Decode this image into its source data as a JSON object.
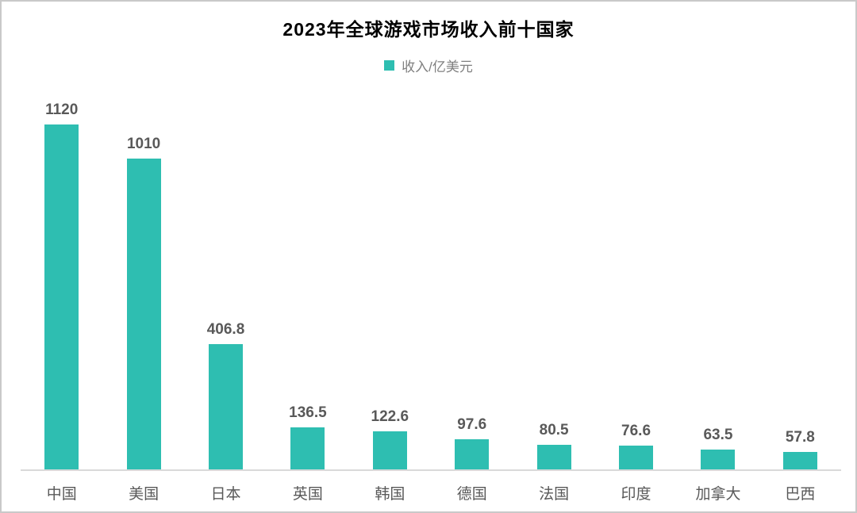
{
  "chart_data": {
    "type": "bar",
    "title": "2023年全球游戏市场收入前十国家",
    "legend": [
      {
        "label": "收入/亿美元",
        "color": "#2EBEB1"
      }
    ],
    "legend_position": "top",
    "categories": [
      "中国",
      "美国",
      "日本",
      "英国",
      "韩国",
      "德国",
      "法国",
      "印度",
      "加拿大",
      "巴西"
    ],
    "values": [
      1120,
      1010,
      406.8,
      136.5,
      122.6,
      97.6,
      80.5,
      76.6,
      63.5,
      57.8
    ],
    "value_labels": [
      "1120",
      "1010",
      "406.8",
      "136.5",
      "122.6",
      "97.6",
      "80.5",
      "76.6",
      "63.5",
      "57.8"
    ],
    "xlabel": "",
    "ylabel": "",
    "ylim": [
      0,
      1200
    ],
    "grid": false,
    "bar_color": "#2EBEB1",
    "value_label_color": "#595959",
    "category_label_color": "#595959",
    "axis_line_color": "#d9d9d9",
    "title_color": "#000000",
    "legend_text_color": "#7f7f7f"
  }
}
